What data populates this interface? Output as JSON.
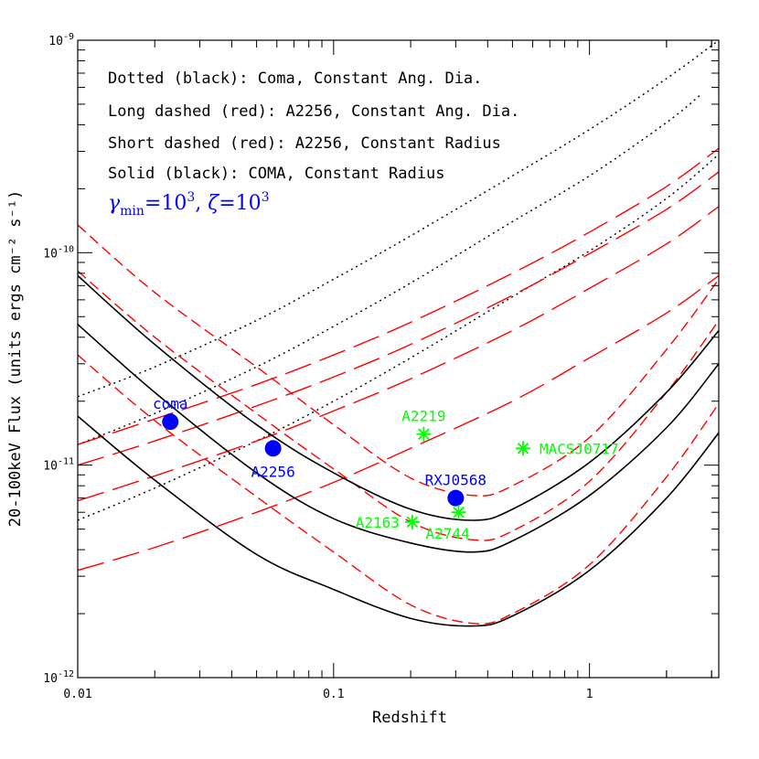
{
  "chart_data": {
    "type": "line",
    "xscale": "log",
    "yscale": "log",
    "xlim": [
      0.01,
      3.2
    ],
    "ylim": [
      1e-12,
      1e-09
    ],
    "xlabel": "Redshift",
    "ylabel": "20-100keV Flux (units ergs cm⁻² s⁻¹)",
    "x_tick_labels": [
      {
        "value": 0.01,
        "label": "0.01"
      },
      {
        "value": 0.1,
        "label": "0.1"
      },
      {
        "value": 1,
        "label": "1"
      }
    ],
    "y_tick_labels": [
      {
        "value": 1e-12,
        "base": "10",
        "exp": "-12"
      },
      {
        "value": 1e-11,
        "base": "10",
        "exp": "-11"
      },
      {
        "value": 1e-10,
        "base": "10",
        "exp": "-10"
      },
      {
        "value": 1e-09,
        "base": "10",
        "exp": "-9"
      }
    ],
    "legend_lines": [
      "Dotted (black): Coma, Constant Ang. Dia.",
      "Long dashed (red): A2256, Constant Ang. Dia.",
      "Short dashed (red): A2256, Constant  Radius",
      "Solid (black): COMA, Constant Radius"
    ],
    "legend_params": {
      "gamma": "γ",
      "gamma_sub": "min",
      "gamma_eq": "=10",
      "gamma_exp": "3",
      "zeta": "ζ",
      "zeta_eq": "=10",
      "zeta_exp": "3"
    },
    "series": [
      {
        "group": "dotted",
        "color": "#000000",
        "dash": "2,4",
        "x": [
          0.01,
          0.02,
          0.05,
          0.1,
          0.2,
          0.5,
          1,
          2,
          3.2
        ],
        "y": [
          2.1e-11,
          2.9e-11,
          4.8e-11,
          7.5e-11,
          1.2e-10,
          2.3e-10,
          3.8e-10,
          6.6e-10,
          1e-09
        ]
      },
      {
        "group": "dotted",
        "color": "#000000",
        "dash": "2,4",
        "x": [
          0.01,
          0.02,
          0.05,
          0.1,
          0.2,
          0.5,
          1,
          2,
          2.7
        ],
        "y": [
          1.25e-11,
          1.75e-11,
          2.9e-11,
          4.5e-11,
          7.2e-11,
          1.4e-10,
          2.3e-10,
          4.1e-10,
          5.5e-10
        ]
      },
      {
        "group": "dotted",
        "color": "#000000",
        "dash": "2,4",
        "x": [
          0.01,
          0.02,
          0.05,
          0.1,
          0.2,
          0.5,
          1,
          2,
          3.2
        ],
        "y": [
          5.5e-12,
          7.8e-12,
          1.3e-11,
          2e-11,
          3.2e-11,
          6.2e-11,
          1.02e-10,
          1.8e-10,
          2.9e-10
        ]
      },
      {
        "group": "long-dashed",
        "color": "#ff0000",
        "dash": "30,10",
        "x": [
          0.01,
          0.02,
          0.05,
          0.1,
          0.2,
          0.5,
          1,
          2,
          3.2
        ],
        "y": [
          1.25e-11,
          1.65e-11,
          2.4e-11,
          3.3e-11,
          4.7e-11,
          8e-11,
          1.25e-10,
          2.05e-10,
          3.1e-10
        ]
      },
      {
        "group": "long-dashed",
        "color": "#ff0000",
        "dash": "30,10",
        "x": [
          0.01,
          0.02,
          0.05,
          0.1,
          0.2,
          0.5,
          1,
          2,
          3.2
        ],
        "y": [
          1e-11,
          1.3e-11,
          1.9e-11,
          2.6e-11,
          3.7e-11,
          6.3e-11,
          9.9e-11,
          1.6e-10,
          2.4e-10
        ]
      },
      {
        "group": "long-dashed",
        "color": "#ff0000",
        "dash": "30,10",
        "x": [
          0.01,
          0.02,
          0.05,
          0.1,
          0.2,
          0.5,
          1,
          2,
          3.2
        ],
        "y": [
          6.8e-12,
          8.9e-12,
          1.3e-11,
          1.8e-11,
          2.55e-11,
          4.3e-11,
          6.8e-11,
          1.1e-10,
          1.65e-10
        ]
      },
      {
        "group": "long-dashed",
        "color": "#ff0000",
        "dash": "30,10",
        "x": [
          0.01,
          0.02,
          0.05,
          0.1,
          0.2,
          0.5,
          1,
          2,
          3.2
        ],
        "y": [
          3.2e-12,
          4.1e-12,
          6e-12,
          8.3e-12,
          1.2e-11,
          2e-11,
          3.2e-11,
          5.2e-11,
          7.8e-11
        ]
      },
      {
        "group": "short-dashed",
        "color": "#ff0000",
        "dash": "12,6",
        "x": [
          0.01,
          0.02,
          0.05,
          0.1,
          0.2,
          0.35,
          0.5,
          1,
          2,
          3.2
        ],
        "y": [
          1.35e-10,
          6.5e-11,
          2.9e-11,
          1.55e-11,
          8.7e-12,
          7.2e-12,
          8e-12,
          1.35e-11,
          3.5e-11,
          7.5e-11
        ]
      },
      {
        "group": "short-dashed",
        "color": "#ff0000",
        "dash": "12,6",
        "x": [
          0.01,
          0.02,
          0.05,
          0.1,
          0.2,
          0.35,
          0.5,
          1,
          2,
          3.2
        ],
        "y": [
          8.2e-11,
          4e-11,
          1.75e-11,
          9.6e-12,
          5.4e-12,
          4.45e-12,
          4.9e-12,
          8.4e-12,
          2.2e-11,
          4.8e-11
        ]
      },
      {
        "group": "short-dashed",
        "color": "#ff0000",
        "dash": "12,6",
        "x": [
          0.01,
          0.02,
          0.05,
          0.1,
          0.2,
          0.35,
          0.5,
          1,
          2,
          3.2
        ],
        "y": [
          3.3e-11,
          1.62e-11,
          7.1e-12,
          3.9e-12,
          2.2e-12,
          1.8e-12,
          2e-12,
          3.4e-12,
          8.8e-12,
          1.95e-11
        ]
      },
      {
        "group": "solid",
        "color": "#000000",
        "dash": "",
        "x": [
          0.01,
          0.02,
          0.05,
          0.1,
          0.2,
          0.35,
          0.5,
          1,
          2,
          3.2
        ],
        "y": [
          7.8e-11,
          3.7e-11,
          1.55e-11,
          9.2e-12,
          6.2e-12,
          5.5e-12,
          6.2e-12,
          1.03e-11,
          2.2e-11,
          4.3e-11
        ]
      },
      {
        "group": "solid",
        "color": "#000000",
        "dash": "",
        "x": [
          0.01,
          0.02,
          0.05,
          0.1,
          0.2,
          0.35,
          0.5,
          1,
          2,
          3.2
        ],
        "y": [
          4.6e-11,
          2.2e-11,
          9.2e-12,
          5.6e-12,
          4.3e-12,
          3.9e-12,
          4.4e-12,
          7.2e-12,
          1.5e-11,
          3e-11
        ]
      },
      {
        "group": "solid",
        "color": "#000000",
        "dash": "",
        "x": [
          0.01,
          0.02,
          0.05,
          0.1,
          0.2,
          0.35,
          0.5,
          1,
          2,
          3.2
        ],
        "y": [
          1.7e-11,
          8.5e-12,
          3.8e-12,
          2.6e-12,
          1.9e-12,
          1.75e-12,
          1.95e-12,
          3.2e-12,
          7e-12,
          1.42e-11
        ]
      }
    ],
    "points": [
      {
        "label": "coma",
        "x": 0.023,
        "y": 1.6e-11,
        "marker": "circle",
        "color": "#0000ff",
        "label_pos": "above"
      },
      {
        "label": "A2256",
        "x": 0.058,
        "y": 1.2e-11,
        "marker": "circle",
        "color": "#0000ff",
        "label_pos": "below"
      },
      {
        "label": "RXJ0568",
        "x": 0.3,
        "y": 7e-12,
        "marker": "circle",
        "color": "#0000ff",
        "label_pos": "above"
      },
      {
        "label": "A2219",
        "x": 0.225,
        "y": 1.4e-11,
        "marker": "star",
        "color": "#00ff00",
        "label_pos": "above"
      },
      {
        "label": "MACSJ0717",
        "x": 0.55,
        "y": 1.2e-11,
        "marker": "star",
        "color": "#00ff00",
        "label_pos": "right"
      },
      {
        "label": "A2163",
        "x": 0.203,
        "y": 5.4e-12,
        "marker": "star",
        "color": "#00ff00",
        "label_pos": "left"
      },
      {
        "label": "A2744",
        "x": 0.308,
        "y": 6e-12,
        "marker": "star",
        "color": "#00ff00",
        "label_pos": "below-right"
      }
    ]
  }
}
